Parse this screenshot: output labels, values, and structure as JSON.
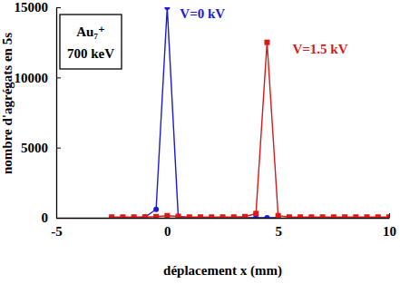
{
  "chart_data": {
    "type": "line",
    "x_label": "déplacement x (mm)",
    "y_label": "nombre d'agrégats en 5s",
    "annotations": [
      "Au₇⁺",
      "700 keV"
    ],
    "xlim": [
      -5,
      10
    ],
    "xticks": [
      -5,
      0,
      5,
      10
    ],
    "ylim": [
      0,
      15000
    ],
    "yticks": [
      0,
      5000,
      10000,
      15000
    ],
    "grid": false,
    "series": [
      {
        "name": "V=0 kV",
        "color": "#1a1ad6",
        "marker": "circle",
        "line_style": "solid",
        "x": [
          -2.5,
          -2,
          -1.5,
          -1,
          -0.5,
          0,
          0.5,
          1,
          1.5,
          2,
          2.5,
          3,
          3.5,
          4,
          4.5,
          5
        ],
        "values": [
          0,
          0,
          0,
          50,
          600,
          15000,
          0,
          0,
          0,
          0,
          0,
          0,
          0,
          0,
          0,
          0
        ]
      },
      {
        "name": "V=1.5 kV",
        "color": "#d61a1a",
        "marker": "square",
        "line_style": "solid",
        "x": [
          -2.5,
          -2,
          -1.5,
          -1,
          -0.5,
          0,
          0.5,
          1,
          1.5,
          2,
          2.5,
          3,
          3.5,
          4,
          4.5,
          5,
          5.5,
          6,
          6.5,
          7,
          7.5,
          8,
          8.5,
          9,
          9.5,
          10
        ],
        "values": [
          50,
          50,
          50,
          50,
          80,
          150,
          100,
          50,
          50,
          50,
          50,
          50,
          80,
          300,
          12500,
          150,
          50,
          50,
          50,
          50,
          50,
          50,
          50,
          50,
          50,
          50
        ]
      }
    ]
  }
}
